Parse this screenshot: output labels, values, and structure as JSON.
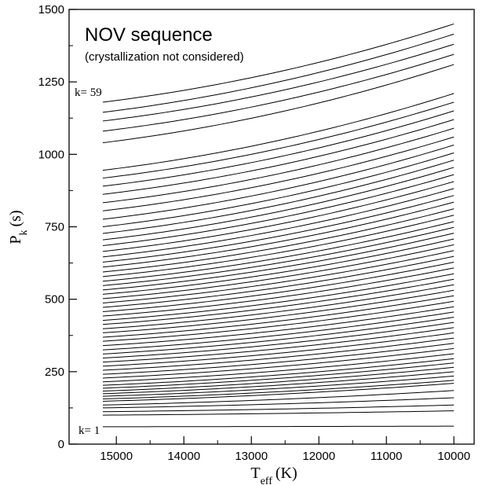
{
  "chart_data": {
    "type": "line",
    "title": "NOV sequence",
    "subtitle": "(crystallization not considered)",
    "xlabel": {
      "main": "T",
      "sub": "eff",
      "unit": "(K)"
    },
    "ylabel": {
      "main": "P",
      "sub": "k",
      "unit": "(s)"
    },
    "xlim": [
      15700,
      9700
    ],
    "ylim": [
      0,
      1500
    ],
    "x_reversed": true,
    "x_ticks": [
      15000,
      14000,
      13000,
      12000,
      11000,
      10000
    ],
    "x_tick_labels": [
      "15000",
      "14000",
      "13000",
      "12000",
      "11000",
      "10000"
    ],
    "y_ticks": [
      0,
      250,
      500,
      750,
      1000,
      1250,
      1500
    ],
    "y_tick_labels": [
      "0",
      "250",
      "500",
      "750",
      "1000",
      "1250",
      "1500"
    ],
    "annotations": {
      "first_mode": "k= 1",
      "last_mode": "k= 59"
    },
    "grid": false,
    "mode_count": 59,
    "x_start": 15200,
    "x_end": 10000,
    "series_values_at_x_start": [
      60,
      100,
      112,
      125,
      135,
      148,
      156,
      165,
      174,
      183,
      193,
      203,
      215,
      228,
      241,
      255,
      269,
      283,
      297,
      311,
      325,
      340,
      355,
      369,
      384,
      398,
      413,
      427,
      442,
      457,
      472,
      487,
      502,
      517,
      532,
      547,
      562,
      578,
      594,
      611,
      628,
      646,
      665,
      685,
      705,
      727,
      750,
      776,
      805,
      833,
      862,
      890,
      918,
      945,
      1040,
      1080,
      1115,
      1145,
      1180
    ],
    "series_values_at_x_end": [
      62,
      115,
      135,
      160,
      185,
      210,
      220,
      235,
      250,
      265,
      280,
      295,
      312,
      330,
      348,
      366,
      384,
      402,
      420,
      438,
      456,
      474,
      493,
      512,
      531,
      550,
      569,
      588,
      608,
      628,
      648,
      668,
      688,
      708,
      728,
      748,
      768,
      790,
      812,
      835,
      858,
      882,
      906,
      930,
      955,
      980,
      1005,
      1032,
      1060,
      1090,
      1120,
      1150,
      1180,
      1210,
      1310,
      1345,
      1380,
      1415,
      1450
    ],
    "series_color": "#000000"
  }
}
